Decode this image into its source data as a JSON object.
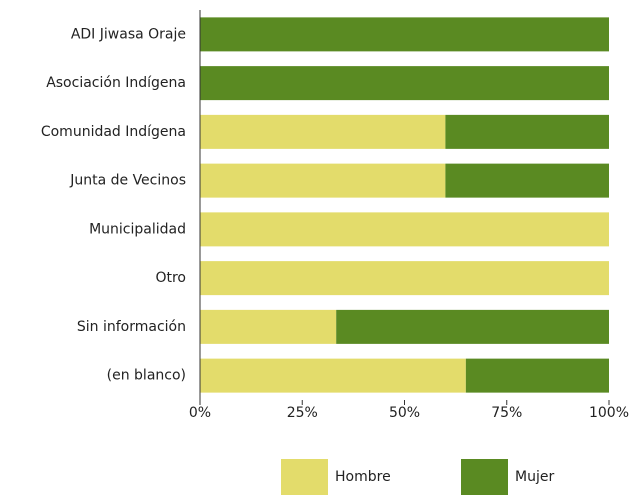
{
  "chart_data": {
    "type": "bar",
    "orientation": "horizontal",
    "stacked": true,
    "categories": [
      "ADI Jiwasa Oraje",
      "Asociación Indígena",
      "Comunidad Indígena",
      "Junta de Vecinos",
      "Municipalidad",
      "Otro",
      "Sin información",
      "(en blanco)"
    ],
    "series": [
      {
        "name": "Hombre",
        "color": "#e3dc6b",
        "values": [
          0,
          0,
          60,
          60,
          100,
          100,
          33.3,
          65
        ]
      },
      {
        "name": "Mujer",
        "color": "#5a8a22",
        "values": [
          100,
          100,
          40,
          40,
          0,
          0,
          66.7,
          35
        ]
      }
    ],
    "xlim": [
      0,
      100
    ],
    "xticks": [
      {
        "value": 0,
        "label": "0%"
      },
      {
        "value": 25,
        "label": "25%"
      },
      {
        "value": 50,
        "label": "50%"
      },
      {
        "value": 75,
        "label": "75%"
      },
      {
        "value": 100,
        "label": "100%"
      }
    ],
    "legend": "bottom"
  }
}
